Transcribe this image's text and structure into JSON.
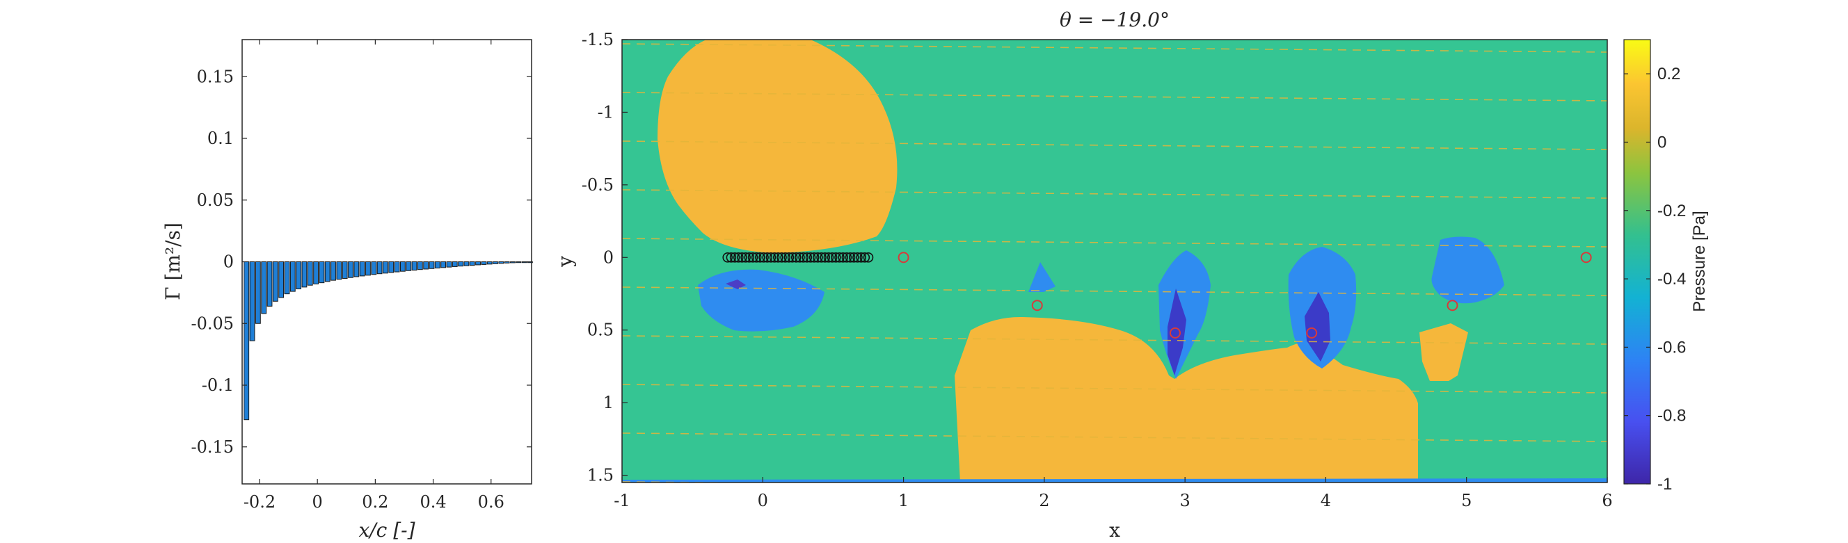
{
  "colors": {
    "background": "#35c593",
    "positive_region": "#f5b73b",
    "negative_region": "#2f8cf0",
    "deep_negative": "#3b3bc8",
    "bar_fill": "#1f7fd6",
    "bar_edge": "#1a1a1a",
    "marker_red": "#d93a3a",
    "streak": "#e3b53a"
  },
  "chart_data": [
    {
      "type": "bar",
      "xlabel": "x/c [-]",
      "ylabel": "Γ [m²/s]",
      "xlim": [
        -0.26,
        0.74
      ],
      "ylim": [
        -0.18,
        0.18
      ],
      "xticks": [
        "-0.2",
        "0",
        "0.2",
        "0.4",
        "0.6"
      ],
      "yticks": [
        "-0.15",
        "-0.1",
        "-0.05",
        "0",
        "0.05",
        "0.1",
        "0.15"
      ],
      "grid": false,
      "x": [
        -0.245,
        -0.225,
        -0.205,
        -0.185,
        -0.165,
        -0.145,
        -0.125,
        -0.105,
        -0.085,
        -0.065,
        -0.045,
        -0.025,
        -0.005,
        0.015,
        0.035,
        0.055,
        0.075,
        0.095,
        0.115,
        0.135,
        0.155,
        0.175,
        0.195,
        0.215,
        0.235,
        0.255,
        0.275,
        0.295,
        0.315,
        0.335,
        0.355,
        0.375,
        0.395,
        0.415,
        0.435,
        0.455,
        0.475,
        0.495,
        0.515,
        0.535,
        0.555,
        0.575,
        0.595,
        0.615,
        0.635,
        0.655,
        0.675,
        0.695,
        0.715,
        0.735
      ],
      "values": [
        -0.128,
        -0.064,
        -0.05,
        -0.042,
        -0.036,
        -0.032,
        -0.029,
        -0.026,
        -0.024,
        -0.022,
        -0.0205,
        -0.019,
        -0.018,
        -0.017,
        -0.016,
        -0.015,
        -0.0142,
        -0.0135,
        -0.0128,
        -0.0121,
        -0.0115,
        -0.0109,
        -0.0103,
        -0.0097,
        -0.0092,
        -0.0087,
        -0.0082,
        -0.0077,
        -0.0072,
        -0.0068,
        -0.0063,
        -0.0059,
        -0.0055,
        -0.0051,
        -0.0047,
        -0.0043,
        -0.0039,
        -0.0035,
        -0.0032,
        -0.0029,
        -0.0025,
        -0.0022,
        -0.0019,
        -0.0016,
        -0.0013,
        -0.001,
        -0.0008,
        -0.0005,
        -0.0003,
        -0.0001
      ]
    },
    {
      "type": "heatmap",
      "title": "θ = −19.0°",
      "xlabel": "x",
      "ylabel": "y",
      "xlim": [
        -1,
        6
      ],
      "ylim": [
        -1.5,
        1.55
      ],
      "y_axis_reversed": true,
      "xticks": [
        "-1",
        "0",
        "1",
        "2",
        "3",
        "4",
        "5",
        "6"
      ],
      "yticks": [
        "-1.5",
        "-1",
        "-0.5",
        "0",
        "0.5",
        "1",
        "1.5"
      ],
      "colorbar": {
        "label": "Pressure [Pa]",
        "range": [
          -1,
          0.3
        ],
        "ticks": [
          "0.2",
          "0",
          "-0.2",
          "-0.4",
          "-0.6",
          "-0.8",
          "-1"
        ],
        "colormap": "parula"
      },
      "black_circle_markers": {
        "x_start": -0.25,
        "x_end": 0.75,
        "count": 40,
        "y": 0
      },
      "red_circle_markers": [
        {
          "x": 1.0,
          "y": 0.0
        },
        {
          "x": 1.95,
          "y": 0.33
        },
        {
          "x": 2.93,
          "y": 0.52
        },
        {
          "x": 3.9,
          "y": 0.52
        },
        {
          "x": 4.9,
          "y": 0.33
        },
        {
          "x": 5.85,
          "y": 0.0
        }
      ]
    }
  ]
}
